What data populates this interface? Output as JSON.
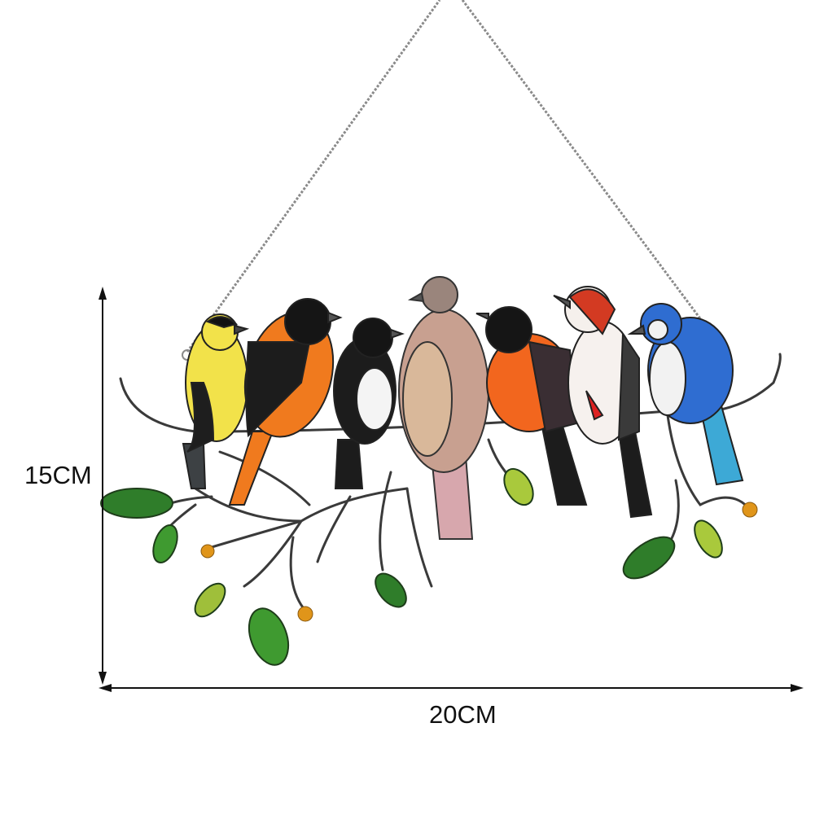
{
  "product": {
    "description_labels": {
      "height": "15CM",
      "width": "20CM"
    },
    "colors": {
      "chain": "#8a8a8a",
      "branch": "#3a3a3a",
      "leaf_dark": "#2f7d2a",
      "leaf_light": "#9fbf3a",
      "berry": "#e0951a"
    },
    "birds": [
      "goldfinch-yellow",
      "oriole-orange",
      "chickadee-black-white",
      "dove-pink-brown",
      "robin-orange",
      "woodpecker-red-white",
      "blue-jay"
    ]
  }
}
